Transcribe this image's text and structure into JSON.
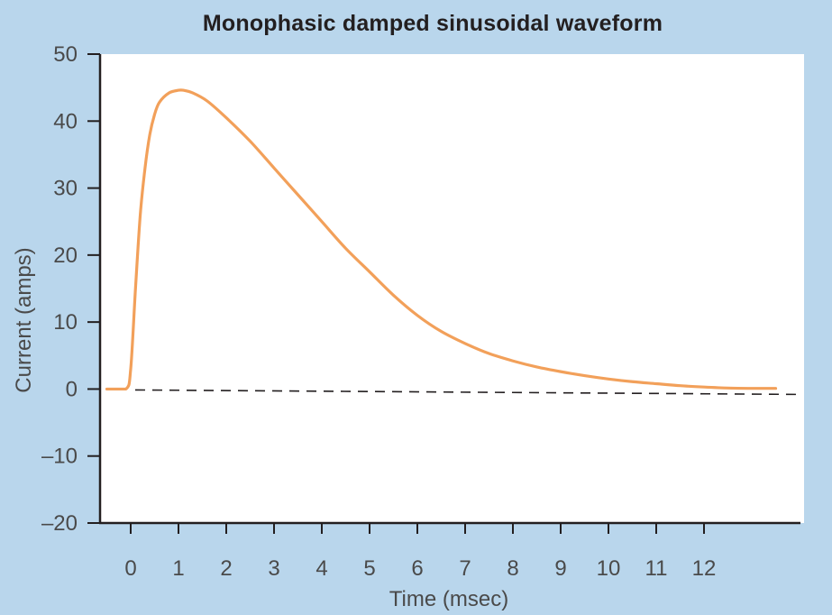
{
  "chart_data": {
    "type": "line",
    "title": "Monophasic damped sinusoidal waveform",
    "xlabel": "Time (msec)",
    "ylabel": "Current (amps)",
    "xlim": [
      -0.6,
      13.7
    ],
    "ylim": [
      -20,
      50
    ],
    "x_ticks": [
      0,
      1,
      2,
      3,
      4,
      5,
      6,
      7,
      8,
      9,
      10,
      11,
      12
    ],
    "x_tick_labels": [
      "0",
      "1",
      "2",
      "3",
      "4",
      "5",
      "6",
      "7",
      "8",
      "9",
      "10",
      "11",
      "12"
    ],
    "y_ticks": [
      -20,
      -10,
      0,
      10,
      20,
      30,
      40,
      50
    ],
    "y_tick_labels": [
      "–20",
      "–10",
      "0",
      "10",
      "20",
      "30",
      "40",
      "50"
    ],
    "grid": false,
    "baseline": {
      "y": 0,
      "style": "dashed"
    },
    "colors": {
      "background": "#b9d6ec",
      "plot_area": "#ffffff",
      "series": "#f2a05a",
      "axis": "#231f20"
    },
    "series": [
      {
        "x": [
          -0.5,
          -0.1,
          0.0,
          0.1,
          0.2,
          0.3,
          0.4,
          0.5,
          0.6,
          0.8,
          1.0,
          1.1,
          1.3,
          1.6,
          2.0,
          2.5,
          3.0,
          3.5,
          4.0,
          4.5,
          5.0,
          5.5,
          6.0,
          6.5,
          7.0,
          7.5,
          8.0,
          8.5,
          9.0,
          9.5,
          10.0,
          10.5,
          11.0,
          11.5,
          12.0,
          12.5,
          13.0,
          13.5
        ],
        "y": [
          0,
          0,
          3,
          15,
          26,
          33,
          38,
          41,
          42.8,
          44.2,
          44.6,
          44.6,
          44.2,
          43,
          40.5,
          37,
          33,
          29,
          25,
          21,
          17.5,
          14,
          11,
          8.6,
          6.8,
          5.3,
          4.2,
          3.3,
          2.6,
          2.0,
          1.5,
          1.1,
          0.8,
          0.5,
          0.3,
          0.15,
          0.1,
          0.1
        ]
      }
    ]
  }
}
